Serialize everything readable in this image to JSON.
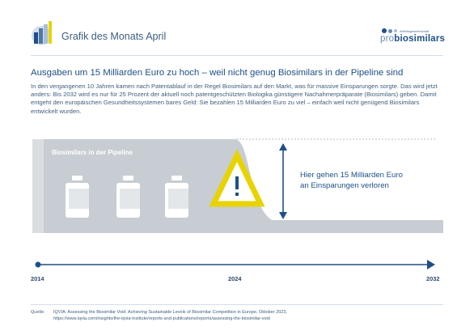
{
  "header": {
    "title": "Grafik des Monats April",
    "brand_small": "Arbeitsgemeinschaft",
    "brand_pro": "pro",
    "brand_bio": "biosimilars",
    "colors": {
      "primary": "#1f4f86",
      "light": "#a8bfd8",
      "accent": "#e8d300"
    }
  },
  "headline": "Ausgaben um 15 Milliarden Euro zu hoch – weil nicht genug Biosimilars in der Pipeline sind",
  "intro": "In den vergangenen 10 Jahren kamen nach Patentablauf in der Regel Biosimilars auf den Markt, was für massive Einsparungen sorgte. Das wird jetzt anders: Bis 2032 wird es nur für 25 Prozent der aktuell noch patentgeschützten Biologika günstigere Nachahmerpräparate (Biosimilars) geben. Damit entgeht den europäischen Gesundheitssystemen bares Geld: Sie bezahlen 15 Milliarden Euro zu viel – einfach weil nicht genügend Biosimilars entwickelt wurden.",
  "diagram": {
    "pipeline_label": "Biosimilars in der Pipeline",
    "callout_line1": "Hier gehen 15 Milliarden Euro",
    "callout_line2": "an Einsparungen verloren",
    "warning_icon": "warning-triangle-icon",
    "bottle_icon": "medicine-bottle-icon",
    "colors": {
      "area": "#c7cdd2",
      "bottle": "#ffffff",
      "warning": "#e8d300",
      "arrow": "#1f4f86"
    }
  },
  "timeline": {
    "years": [
      "2014",
      "2024",
      "2032"
    ]
  },
  "source": {
    "label": "Quelle:",
    "line1": "IQVIA: Assessing the Biosimilar Void: Achieving Sustainable Levels of Biosimilar Competition in Europe, Oktober 2023,",
    "line2": "https://www.iqvia.com/insights/the-iqvia-institute/reports-and-publications/reports/assessing-the-biosimilar-void"
  }
}
